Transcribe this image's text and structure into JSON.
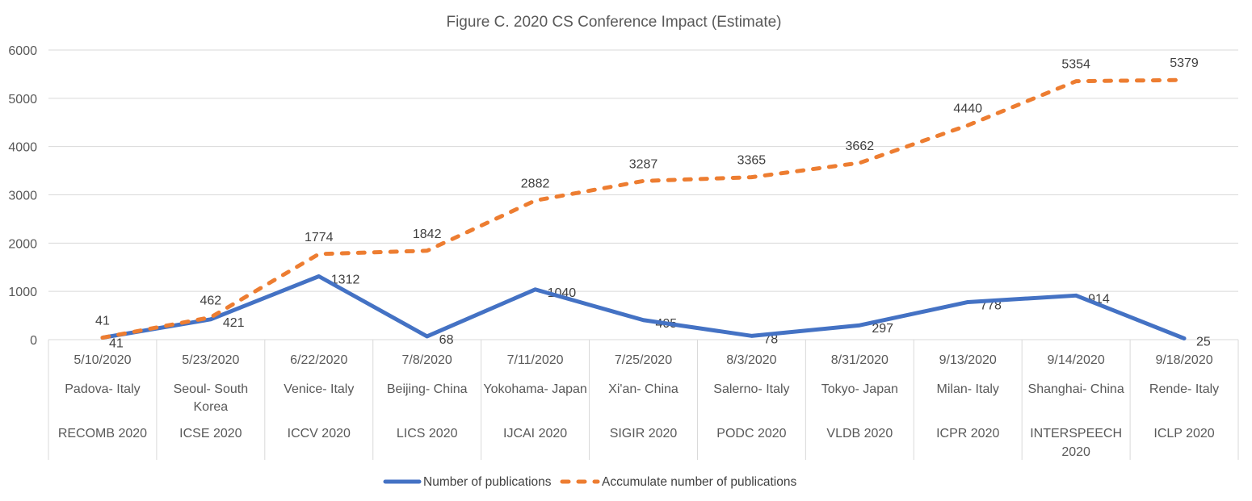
{
  "chart_data": {
    "type": "line",
    "title": "Figure C. 2020 CS Conference Impact (Estimate)",
    "categories": [
      {
        "date": "5/10/2020",
        "location": [
          "Padova- Italy"
        ],
        "conference": [
          "RECOMB 2020"
        ]
      },
      {
        "date": "5/23/2020",
        "location": [
          "Seoul- South",
          "Korea"
        ],
        "conference": [
          "ICSE 2020"
        ]
      },
      {
        "date": "6/22/2020",
        "location": [
          "Venice- Italy"
        ],
        "conference": [
          "ICCV 2020"
        ]
      },
      {
        "date": "7/8/2020",
        "location": [
          "Beijing- China"
        ],
        "conference": [
          "LICS 2020"
        ]
      },
      {
        "date": "7/11/2020",
        "location": [
          "Yokohama- Japan"
        ],
        "conference": [
          "IJCAI 2020"
        ]
      },
      {
        "date": "7/25/2020",
        "location": [
          "Xi'an- China"
        ],
        "conference": [
          "SIGIR 2020"
        ]
      },
      {
        "date": "8/3/2020",
        "location": [
          "Salerno- Italy"
        ],
        "conference": [
          "PODC 2020"
        ]
      },
      {
        "date": "8/31/2020",
        "location": [
          "Tokyo- Japan"
        ],
        "conference": [
          "VLDB 2020"
        ]
      },
      {
        "date": "9/13/2020",
        "location": [
          "Milan- Italy"
        ],
        "conference": [
          "ICPR 2020"
        ]
      },
      {
        "date": "9/14/2020",
        "location": [
          "Shanghai- China"
        ],
        "conference": [
          "INTERSPEECH",
          "2020"
        ]
      },
      {
        "date": "9/18/2020",
        "location": [
          "Rende- Italy"
        ],
        "conference": [
          "ICLP 2020"
        ]
      }
    ],
    "series": [
      {
        "name": "Number of publications",
        "color": "#4472C4",
        "line_style": "solid",
        "values": [
          41,
          421,
          1312,
          68,
          1040,
          405,
          78,
          297,
          778,
          914,
          25
        ]
      },
      {
        "name": "Accumulate number of publications",
        "color": "#ED7D31",
        "line_style": "dashed",
        "values": [
          41,
          462,
          1774,
          1842,
          2882,
          3287,
          3365,
          3662,
          4440,
          5354,
          5379
        ]
      }
    ],
    "ylim": [
      0,
      6000
    ],
    "yticks": [
      0,
      1000,
      2000,
      3000,
      4000,
      5000,
      6000
    ],
    "grid": true,
    "data_labels": true,
    "legend_position": "bottom"
  },
  "colors": {
    "grid": "#D9D9D9",
    "axis_text": "#595959",
    "title_text": "#595959",
    "data_label_text": "#404040"
  }
}
